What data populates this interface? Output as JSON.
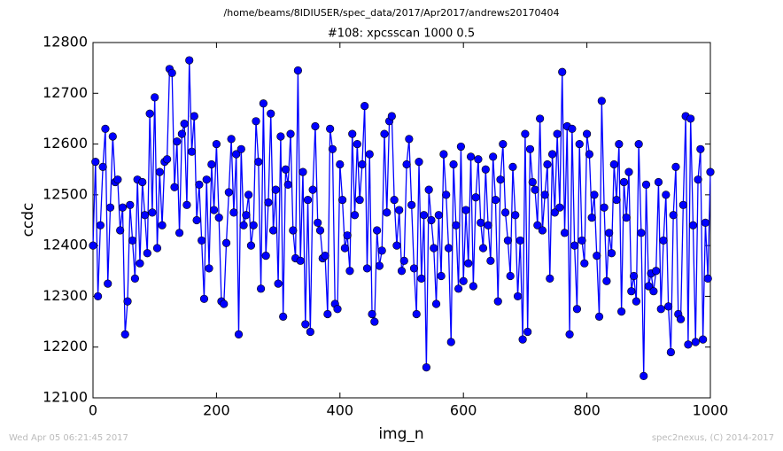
{
  "chart_data": {
    "type": "line",
    "suptitle": "/home/beams/8IDIUSER/spec_data/2017/Apr2017/andrews20170404",
    "title": "#108: xpcsscan 1000 0.5",
    "xlabel": "img_n",
    "ylabel": "ccdc",
    "footer_left": "Wed Apr 05 06:21:45 2017",
    "footer_right": "spec2nexus, (C) 2014-2017",
    "xlim": [
      0,
      1000
    ],
    "xticks": [
      0,
      200,
      400,
      600,
      800,
      1000
    ],
    "ylim": [
      12100,
      12800
    ],
    "yticks": [
      12100,
      12200,
      12300,
      12400,
      12500,
      12600,
      12700,
      12800
    ],
    "grid": false,
    "x": [
      0,
      4,
      8,
      12,
      16,
      20,
      24,
      28,
      32,
      36,
      40,
      44,
      48,
      52,
      56,
      60,
      64,
      68,
      72,
      76,
      80,
      84,
      88,
      92,
      96,
      100,
      104,
      108,
      112,
      116,
      120,
      124,
      128,
      132,
      136,
      140,
      144,
      148,
      152,
      156,
      160,
      164,
      168,
      172,
      176,
      180,
      184,
      188,
      192,
      196,
      200,
      204,
      208,
      212,
      216,
      220,
      224,
      228,
      232,
      236,
      240,
      244,
      248,
      252,
      256,
      260,
      264,
      268,
      272,
      276,
      280,
      284,
      288,
      292,
      296,
      300,
      304,
      308,
      312,
      316,
      320,
      324,
      328,
      332,
      336,
      340,
      344,
      348,
      352,
      356,
      360,
      364,
      368,
      372,
      376,
      380,
      384,
      388,
      392,
      396,
      400,
      404,
      408,
      412,
      416,
      420,
      424,
      428,
      432,
      436,
      440,
      444,
      448,
      452,
      456,
      460,
      464,
      468,
      472,
      476,
      480,
      484,
      488,
      492,
      496,
      500,
      504,
      508,
      512,
      516,
      520,
      524,
      528,
      532,
      536,
      540,
      544,
      548,
      552,
      556,
      560,
      564,
      568,
      572,
      576,
      580,
      584,
      588,
      592,
      596,
      600,
      604,
      608,
      612,
      616,
      620,
      624,
      628,
      632,
      636,
      640,
      644,
      648,
      652,
      656,
      660,
      664,
      668,
      672,
      676,
      680,
      684,
      688,
      692,
      696,
      700,
      704,
      708,
      712,
      716,
      720,
      724,
      728,
      732,
      736,
      740,
      744,
      748,
      752,
      756,
      760,
      764,
      768,
      772,
      776,
      780,
      784,
      788,
      792,
      796,
      800,
      804,
      808,
      812,
      816,
      820,
      824,
      828,
      832,
      836,
      840,
      844,
      848,
      852,
      856,
      860,
      864,
      868,
      872,
      876,
      880,
      884,
      888,
      892,
      896,
      900,
      904,
      908,
      912,
      916,
      920,
      924,
      928,
      932,
      936,
      940,
      944,
      948,
      952,
      956,
      960,
      964,
      968,
      972,
      976,
      980,
      984,
      988,
      992,
      996,
      1000
    ],
    "series": [
      {
        "name": "ccdc",
        "color": "#0000ff",
        "values": [
          12400,
          12565,
          12300,
          12440,
          12555,
          12630,
          12325,
          12475,
          12615,
          12525,
          12530,
          12430,
          12475,
          12225,
          12290,
          12480,
          12410,
          12335,
          12530,
          12365,
          12525,
          12460,
          12385,
          12660,
          12465,
          12692,
          12395,
          12545,
          12440,
          12565,
          12570,
          12748,
          12740,
          12515,
          12605,
          12425,
          12620,
          12640,
          12480,
          12765,
          12585,
          12655,
          12450,
          12520,
          12410,
          12295,
          12530,
          12355,
          12560,
          12470,
          12600,
          12455,
          12290,
          12285,
          12405,
          12505,
          12610,
          12465,
          12580,
          12225,
          12590,
          12440,
          12460,
          12500,
          12400,
          12440,
          12645,
          12565,
          12315,
          12680,
          12380,
          12485,
          12660,
          12430,
          12510,
          12325,
          12615,
          12260,
          12550,
          12520,
          12620,
          12430,
          12375,
          12745,
          12370,
          12545,
          12245,
          12490,
          12230,
          12510,
          12635,
          12445,
          12430,
          12375,
          12380,
          12265,
          12630,
          12590,
          12285,
          12275,
          12560,
          12490,
          12395,
          12420,
          12350,
          12620,
          12460,
          12600,
          12490,
          12560,
          12675,
          12355,
          12580,
          12265,
          12250,
          12430,
          12360,
          12390,
          12620,
          12465,
          12645,
          12655,
          12490,
          12400,
          12470,
          12350,
          12370,
          12560,
          12610,
          12480,
          12355,
          12265,
          12565,
          12335,
          12460,
          12160,
          12510,
          12450,
          12395,
          12285,
          12460,
          12340,
          12580,
          12500,
          12395,
          12210,
          12560,
          12440,
          12315,
          12595,
          12330,
          12470,
          12365,
          12575,
          12320,
          12495,
          12570,
          12445,
          12395,
          12550,
          12440,
          12370,
          12575,
          12490,
          12290,
          12530,
          12600,
          12465,
          12410,
          12340,
          12555,
          12460,
          12300,
          12410,
          12215,
          12620,
          12230,
          12590,
          12525,
          12510,
          12440,
          12650,
          12430,
          12500,
          12560,
          12335,
          12580,
          12465,
          12620,
          12475,
          12742,
          12425,
          12635,
          12225,
          12630,
          12400,
          12275,
          12600,
          12410,
          12365,
          12620,
          12580,
          12455,
          12500,
          12380,
          12260,
          12685,
          12475,
          12330,
          12425,
          12385,
          12560,
          12490,
          12600,
          12270,
          12525,
          12455,
          12545,
          12310,
          12340,
          12290,
          12600,
          12425,
          12143,
          12520,
          12320,
          12345,
          12310,
          12350,
          12525,
          12275,
          12410,
          12500,
          12280,
          12190,
          12460,
          12555,
          12265,
          12255,
          12480,
          12655,
          12205,
          12650,
          12440,
          12210,
          12530,
          12590,
          12215,
          12445,
          12335,
          12545
        ]
      }
    ]
  }
}
